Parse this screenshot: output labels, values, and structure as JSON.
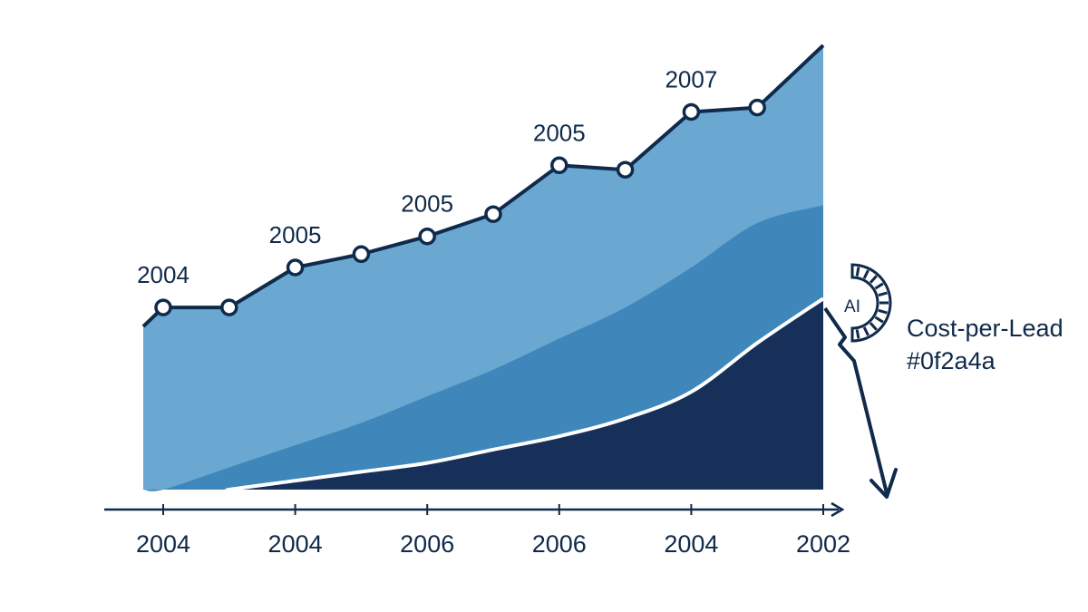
{
  "colors": {
    "navy": "#0f2a4a",
    "light_blue": "#6aa8d2",
    "mid_blue": "#3f87bb",
    "dark_navy": "#16305a",
    "background": "#ffffff"
  },
  "badge": {
    "text": "AI",
    "icon": "gauge-icon"
  },
  "side_text": {
    "line1": "Cost-per-Lead",
    "line2": "#0f2a4a"
  },
  "chart_data": {
    "type": "area",
    "x_tick_labels": [
      "2004",
      "2004",
      "2006",
      "2006",
      "2004",
      "2002"
    ],
    "point_labels": [
      {
        "text": "2004",
        "point": 0
      },
      {
        "text": "2005",
        "point": 2
      },
      {
        "text": "2005",
        "point": 4
      },
      {
        "text": "2005",
        "point": 6
      },
      {
        "text": "2007",
        "point": 8
      }
    ],
    "series": [
      {
        "values": [
          0.41,
          0.41,
          0.5,
          0.53,
          0.57,
          0.62,
          0.73,
          0.72,
          0.85,
          0.86,
          1.0
        ],
        "markers": [
          true,
          true,
          true,
          true,
          true,
          true,
          true,
          true,
          true,
          true,
          false
        ]
      },
      {
        "values": [
          0.0,
          0.05,
          0.1,
          0.15,
          0.21,
          0.27,
          0.34,
          0.41,
          0.5,
          0.6,
          0.64
        ]
      },
      {
        "values": [
          0.0,
          0.0,
          0.02,
          0.04,
          0.06,
          0.09,
          0.12,
          0.16,
          0.22,
          0.33,
          0.43
        ]
      }
    ],
    "ylim": [
      0,
      1
    ],
    "grid": false,
    "legend": "none",
    "annotation": "drop arrow after last point"
  }
}
